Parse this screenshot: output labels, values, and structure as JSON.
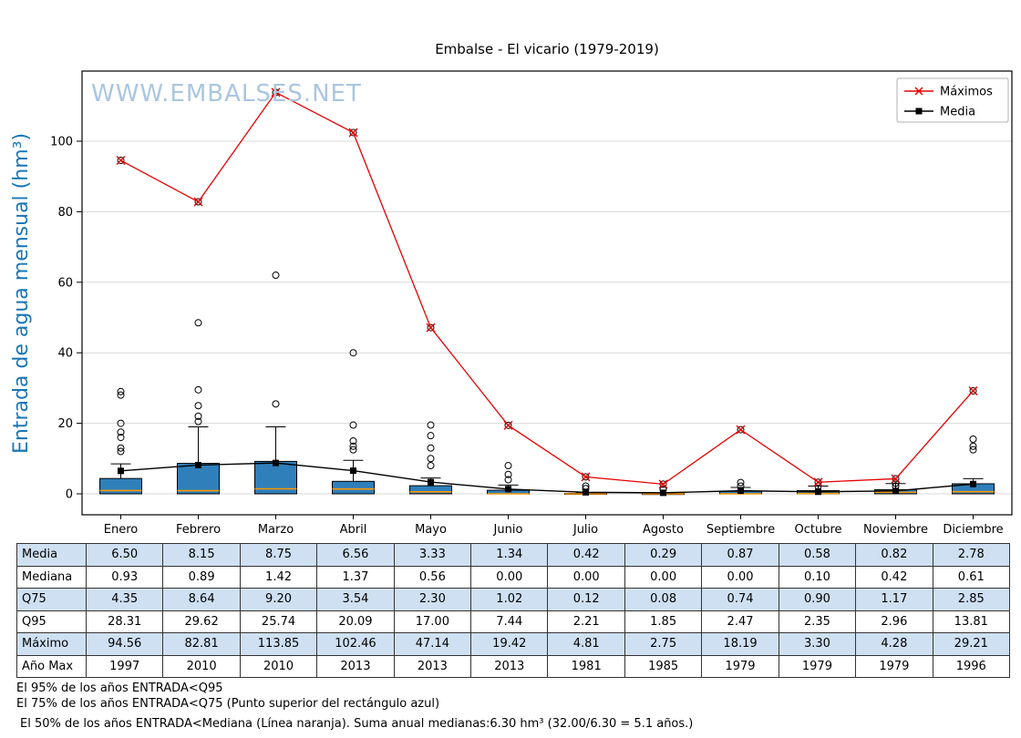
{
  "watermark": "WWW.EMBALSES.NET",
  "colors": {
    "ylabel": "#1a76b5",
    "watermark": "#a9c6e1",
    "table_shade": "#cfe0f3",
    "grid": "#d9d9d9",
    "max_line": "#e60000",
    "mean_line": "#000000",
    "box_fill": "#2f7fba",
    "median_line": "#ff9800"
  },
  "chart_data": {
    "type": "boxplot+line",
    "title": "Embalse - El vicario (1979-2019)",
    "ylabel": "Entrada de agua mensual (hm³)",
    "categories": [
      "Enero",
      "Febrero",
      "Marzo",
      "Abril",
      "Mayo",
      "Junio",
      "Julio",
      "Agosto",
      "Septiembre",
      "Octubre",
      "Noviembre",
      "Diciembre"
    ],
    "yticks": [
      0,
      20,
      40,
      60,
      80,
      100
    ],
    "ylim": [
      -6,
      120
    ],
    "grid": "horizontal",
    "legend_position": "top-right",
    "series": [
      {
        "name": "Máximos",
        "type": "line",
        "marker": "x",
        "color": "#e60000",
        "values": [
          94.56,
          82.81,
          113.85,
          102.46,
          47.14,
          19.42,
          4.81,
          2.75,
          18.19,
          3.3,
          4.28,
          29.21
        ]
      },
      {
        "name": "Media",
        "type": "line",
        "marker": "square",
        "color": "#000000",
        "values": [
          6.5,
          8.15,
          8.75,
          6.56,
          3.33,
          1.34,
          0.42,
          0.29,
          0.87,
          0.58,
          0.82,
          2.78
        ]
      }
    ],
    "boxplot": {
      "q25": [
        0,
        0,
        0,
        0,
        0,
        0,
        0,
        0,
        0,
        0,
        0,
        0
      ],
      "median": [
        0.93,
        0.89,
        1.42,
        1.37,
        0.56,
        0.0,
        0.0,
        0.0,
        0.0,
        0.1,
        0.42,
        0.61
      ],
      "q75": [
        4.35,
        8.64,
        9.2,
        3.54,
        2.3,
        1.02,
        0.12,
        0.08,
        0.74,
        0.9,
        1.17,
        2.85
      ],
      "whisker_high": [
        8.5,
        19,
        19,
        9.5,
        4.5,
        2.5,
        0.3,
        0.2,
        1.8,
        2.2,
        2.9,
        4.3
      ],
      "outliers": [
        [
          12,
          13,
          16,
          17.5,
          20,
          28,
          29,
          94.56
        ],
        [
          20.5,
          22,
          25,
          29.5,
          48.5,
          82.81
        ],
        [
          25.5,
          62,
          113.85
        ],
        [
          12.5,
          13.5,
          15,
          19.5,
          40,
          102.46
        ],
        [
          8,
          10,
          13,
          16.5,
          19.5,
          47.14
        ],
        [
          4,
          5.5,
          8,
          19.42
        ],
        [
          1.5,
          2.2,
          4.81
        ],
        [
          1.2,
          2.75
        ],
        [
          2.2,
          3.2,
          18.19
        ],
        [
          2.2,
          3.3
        ],
        [
          2.2,
          3,
          4.28
        ],
        [
          12.5,
          13.5,
          15.5,
          29.21
        ]
      ]
    }
  },
  "table": {
    "row_labels": [
      "Media",
      "Mediana",
      "Q75",
      "Q95",
      "Máximo",
      "Año Max"
    ],
    "columns": [
      "Enero",
      "Febrero",
      "Marzo",
      "Abril",
      "Mayo",
      "Junio",
      "Julio",
      "Agosto",
      "Septiembre",
      "Octubre",
      "Noviembre",
      "Diciembre"
    ],
    "rows": [
      [
        "6.50",
        "8.15",
        "8.75",
        "6.56",
        "3.33",
        "1.34",
        "0.42",
        "0.29",
        "0.87",
        "0.58",
        "0.82",
        "2.78"
      ],
      [
        "0.93",
        "0.89",
        "1.42",
        "1.37",
        "0.56",
        "0.00",
        "0.00",
        "0.00",
        "0.00",
        "0.10",
        "0.42",
        "0.61"
      ],
      [
        "4.35",
        "8.64",
        "9.20",
        "3.54",
        "2.30",
        "1.02",
        "0.12",
        "0.08",
        "0.74",
        "0.90",
        "1.17",
        "2.85"
      ],
      [
        "28.31",
        "29.62",
        "25.74",
        "20.09",
        "17.00",
        "7.44",
        "2.21",
        "1.85",
        "2.47",
        "2.35",
        "2.96",
        "13.81"
      ],
      [
        "94.56",
        "82.81",
        "113.85",
        "102.46",
        "47.14",
        "19.42",
        "4.81",
        "2.75",
        "18.19",
        "3.30",
        "4.28",
        "29.21"
      ],
      [
        "1997",
        "2010",
        "2010",
        "2013",
        "2013",
        "2013",
        "1981",
        "1985",
        "1979",
        "1979",
        "1979",
        "1996"
      ]
    ],
    "shaded_rows": [
      0,
      2,
      4
    ]
  },
  "footnotes": [
    "El 95% de los años ENTRADA<Q95",
    "El 75% de los años ENTRADA<Q75 (Punto superior del rectángulo azul)",
    "El 50% de los años ENTRADA<Mediana (Línea naranja). Suma anual medianas:6.30 hm³ (32.00/6.30 = 5.1 años.)"
  ]
}
